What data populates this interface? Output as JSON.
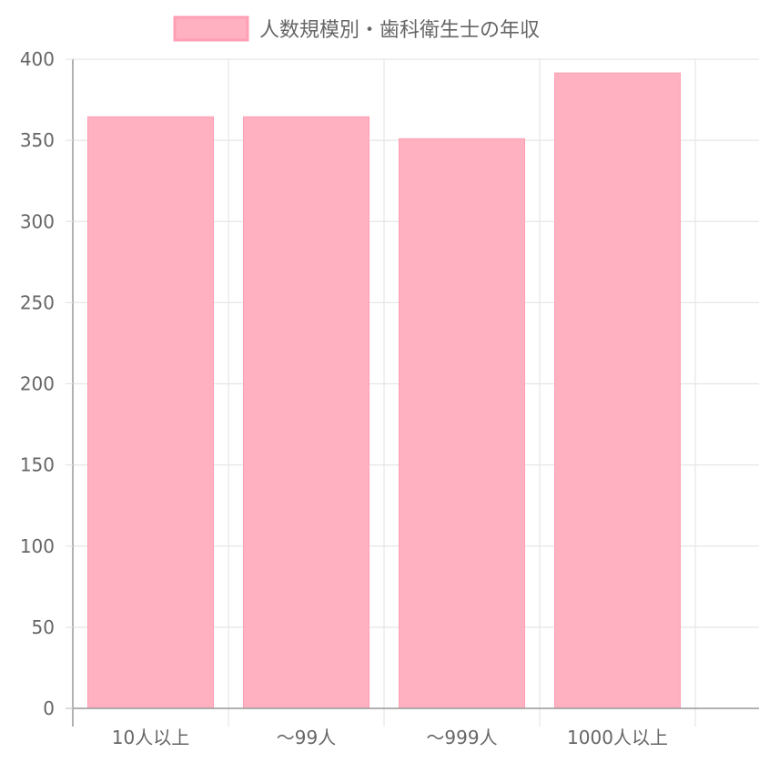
{
  "chart_data": {
    "type": "bar",
    "legend": {
      "label": "人数規模別・歯科衛生士の年収",
      "position": "top"
    },
    "categories": [
      "10人以上",
      "〜99人",
      "〜999人",
      "1000人以上"
    ],
    "series": [
      {
        "name": "人数規模別・歯科衛生士の年収",
        "values": [
          364.5,
          364.5,
          351.0,
          391.5
        ]
      }
    ],
    "ylim": [
      0,
      400
    ],
    "yticks": [
      "0",
      "50",
      "100",
      "150",
      "200",
      "250",
      "300",
      "350",
      "400"
    ],
    "grid": true,
    "colors": {
      "bar_fill": "#ffb1c1",
      "bar_border": "#ff9fb3",
      "grid": "#e6e6e6",
      "axis": "#999999",
      "text": "#666666"
    }
  }
}
